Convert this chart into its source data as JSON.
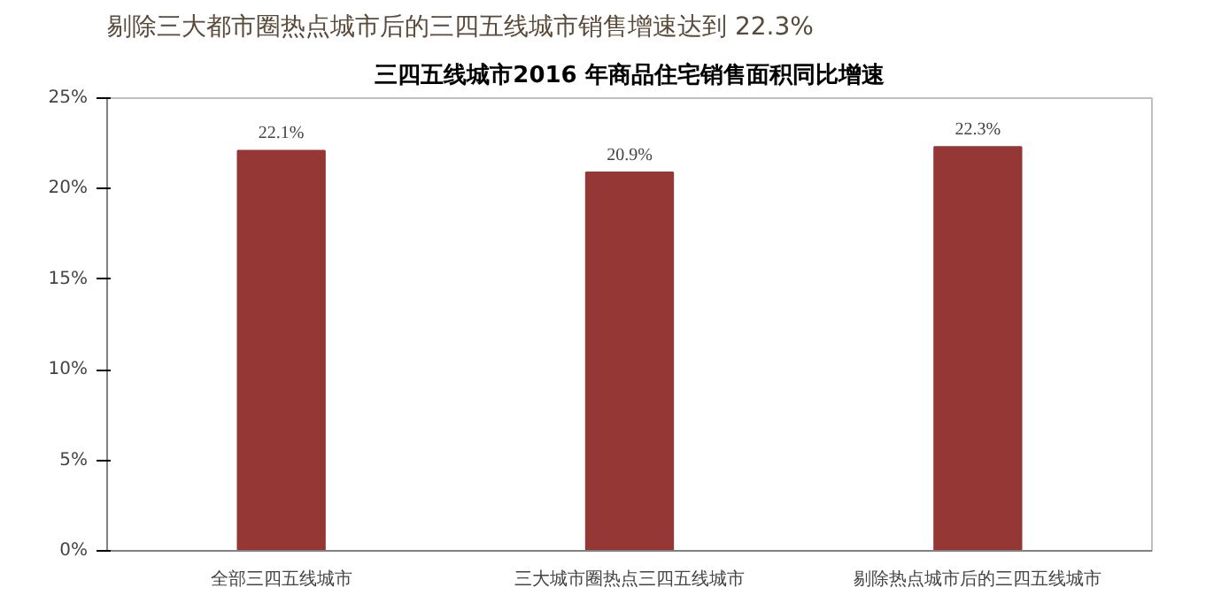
{
  "chart_data": {
    "type": "bar",
    "title": "剔除三大都市圈热点城市后的三四五线城市销售增速达到 22.3%",
    "subtitle": "三四五线城市2016 年商品住宅销售面积同比增速",
    "categories": [
      "全部三四五线城市",
      "三大城市圈热点三四五线城市",
      "剔除热点城市后的三四五线城市"
    ],
    "values": [
      22.1,
      20.9,
      22.3
    ],
    "value_labels": [
      "22.1%",
      "20.9%",
      "22.3%"
    ],
    "color": "#953735",
    "ylim": [
      0,
      25
    ],
    "yticks": [
      {
        "value": 0,
        "label": "0%"
      },
      {
        "value": 5,
        "label": "5%"
      },
      {
        "value": 10,
        "label": "10%"
      },
      {
        "value": 15,
        "label": "15%"
      },
      {
        "value": 20,
        "label": "20%"
      },
      {
        "value": 25,
        "label": "25%"
      }
    ],
    "grid": false
  }
}
